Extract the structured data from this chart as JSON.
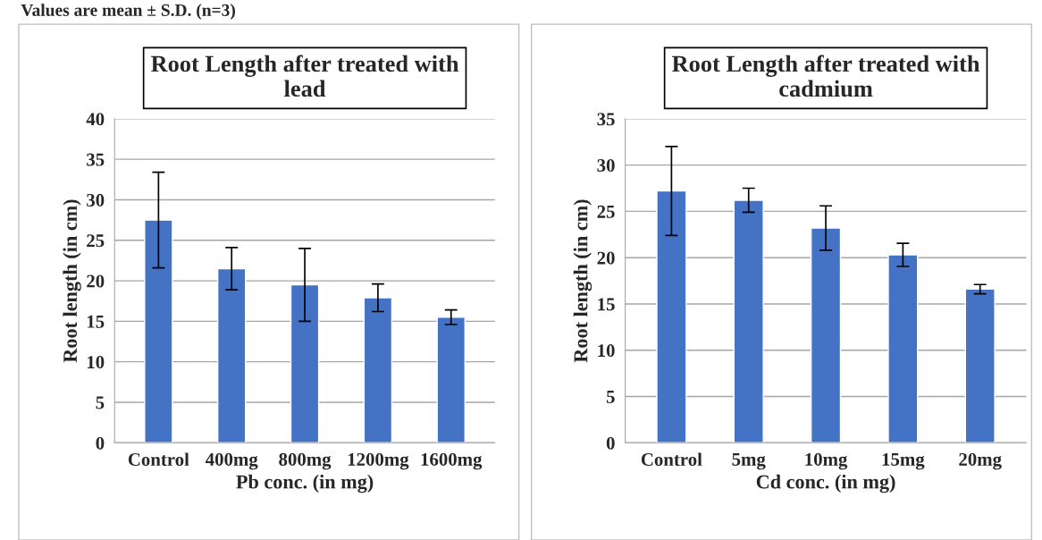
{
  "chart_data": [
    {
      "type": "bar",
      "title": "Root Length after treated with\nlead",
      "xlabel": "Pb conc. (in mg)",
      "ylabel": "Root length (in cm)",
      "categories": [
        "Control",
        "400mg",
        "800mg",
        "1200mg",
        "1600mg"
      ],
      "values": [
        27.5,
        21.5,
        19.5,
        17.9,
        15.5
      ],
      "errors": [
        5.9,
        2.6,
        4.5,
        1.7,
        0.9
      ],
      "color": "#4472c4",
      "ylim": [
        0,
        40
      ],
      "yticks": [
        0,
        5,
        10,
        15,
        20,
        25,
        30,
        35,
        40
      ],
      "grid": "y",
      "annotations": [
        "Values are mean ± S.D. (n=3)"
      ]
    },
    {
      "type": "bar",
      "title": "Root Length after treated with\ncadmium",
      "xlabel": "Cd conc. (in mg)",
      "ylabel": "Root length (in cm)",
      "categories": [
        "Control",
        "5mg",
        "10mg",
        "15mg",
        "20mg"
      ],
      "values": [
        27.2,
        26.2,
        23.2,
        20.3,
        16.6
      ],
      "errors": [
        4.8,
        1.3,
        2.4,
        1.25,
        0.5
      ],
      "color": "#4472c4",
      "ylim": [
        0,
        35
      ],
      "yticks": [
        0,
        5,
        10,
        15,
        20,
        25,
        30,
        35
      ],
      "grid": "y"
    }
  ]
}
